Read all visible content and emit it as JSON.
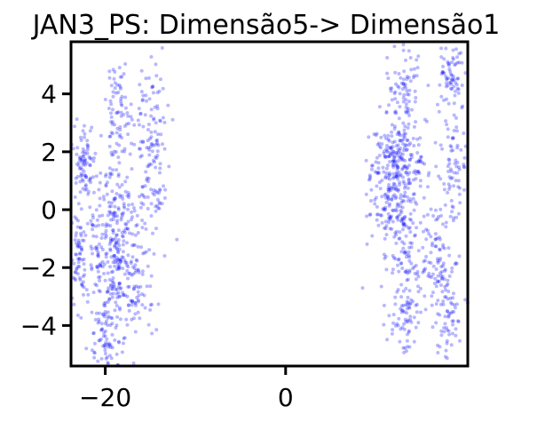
{
  "chart_data": {
    "type": "scatter",
    "title": "JAN3_PS: Dimensão5-> Dimensão1",
    "xlabel": "",
    "ylabel": "",
    "xlim": [
      -23.8,
      20.2
    ],
    "ylim": [
      -5.4,
      5.8
    ],
    "xticks": [
      -20,
      0
    ],
    "xtick_labels": [
      "−20",
      "0"
    ],
    "yticks": [
      -4,
      -2,
      0,
      2,
      4
    ],
    "ytick_labels": [
      "−4",
      "−2",
      "0",
      "2",
      "4"
    ],
    "grid": false,
    "legend": "none",
    "point_color": "#0000ff",
    "clusters": [
      {
        "cx": -18.5,
        "cy": -2.0,
        "sx": 2.0,
        "sy": 1.25,
        "n": 320
      },
      {
        "cx": -19.5,
        "cy": 0.2,
        "sx": 2.0,
        "sy": 0.9,
        "n": 120
      },
      {
        "cx": -22.3,
        "cy": 1.8,
        "sx": 0.6,
        "sy": 0.6,
        "n": 70
      },
      {
        "cx": -22.9,
        "cy": -1.8,
        "sx": 0.5,
        "sy": 0.9,
        "n": 50
      },
      {
        "cx": -18.5,
        "cy": 3.5,
        "sx": 0.8,
        "sy": 0.8,
        "n": 80
      },
      {
        "cx": -14.8,
        "cy": 2.8,
        "sx": 0.8,
        "sy": 1.1,
        "n": 90
      },
      {
        "cx": -14.5,
        "cy": 0.7,
        "sx": 0.7,
        "sy": 0.5,
        "n": 35
      },
      {
        "cx": -19.8,
        "cy": -4.5,
        "sx": 1.0,
        "sy": 0.5,
        "n": 60
      },
      {
        "cx": 12.5,
        "cy": 1.6,
        "sx": 1.6,
        "sy": 0.8,
        "n": 260
      },
      {
        "cx": 12.0,
        "cy": 0.0,
        "sx": 1.2,
        "sy": 0.7,
        "n": 110
      },
      {
        "cx": 13.2,
        "cy": 4.3,
        "sx": 1.0,
        "sy": 0.6,
        "n": 70
      },
      {
        "cx": 18.4,
        "cy": 4.6,
        "sx": 0.8,
        "sy": 0.6,
        "n": 70
      },
      {
        "cx": 18.6,
        "cy": 1.2,
        "sx": 0.7,
        "sy": 1.0,
        "n": 70
      },
      {
        "cx": 16.8,
        "cy": -1.3,
        "sx": 1.0,
        "sy": 0.8,
        "n": 70
      },
      {
        "cx": 13.5,
        "cy": -2.0,
        "sx": 1.2,
        "sy": 0.8,
        "n": 80
      },
      {
        "cx": 13.3,
        "cy": -3.7,
        "sx": 0.9,
        "sy": 0.6,
        "n": 60
      },
      {
        "cx": 17.8,
        "cy": -3.5,
        "sx": 0.9,
        "sy": 0.9,
        "n": 80
      }
    ]
  }
}
